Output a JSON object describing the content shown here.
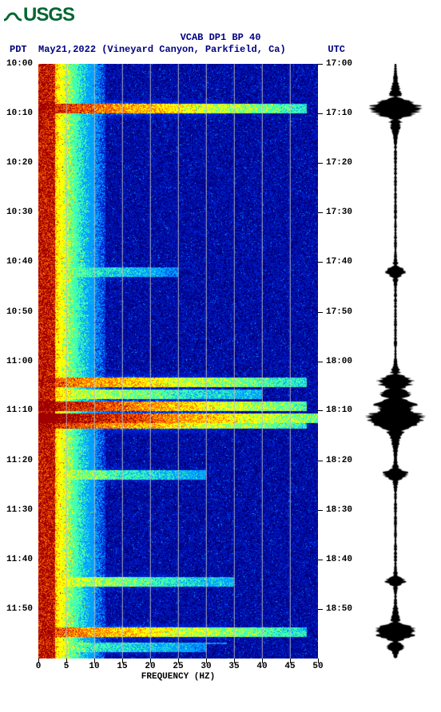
{
  "logo_text": "USGS",
  "title": "VCAB DP1 BP 40",
  "date_location": "May21,2022 (Vineyard Canyon, Parkfield, Ca)",
  "tz_left": "PDT",
  "tz_right": "UTC",
  "x_axis_title": "FREQUENCY (HZ)",
  "x_ticks": [
    0,
    5,
    10,
    15,
    20,
    25,
    30,
    35,
    40,
    45,
    50
  ],
  "time_left_labels": [
    "10:00",
    "10:10",
    "10:20",
    "10:30",
    "10:40",
    "10:50",
    "11:00",
    "11:10",
    "11:20",
    "11:30",
    "11:40",
    "11:50"
  ],
  "time_right_labels": [
    "17:00",
    "17:10",
    "17:20",
    "17:30",
    "17:40",
    "17:50",
    "18:00",
    "18:10",
    "18:20",
    "18:30",
    "18:40",
    "18:50"
  ],
  "time_fractions": [
    0.0,
    0.083,
    0.167,
    0.25,
    0.333,
    0.417,
    0.5,
    0.583,
    0.667,
    0.75,
    0.833,
    0.917
  ],
  "colors": {
    "low": "#000080",
    "mid_low": "#0020d0",
    "mid": "#00a0ff",
    "mid_high": "#40ffb0",
    "high": "#ffff00",
    "vhigh": "#ff6000",
    "max": "#a00000",
    "logo": "#006633",
    "text": "#000080"
  },
  "spectrogram": {
    "freq_range": [
      0,
      50
    ],
    "low_freq_band_end": 3,
    "gradient_end": 12,
    "events": [
      {
        "t": 0.075,
        "strength": 0.9,
        "extent": 48
      },
      {
        "t": 0.35,
        "strength": 0.6,
        "extent": 25
      },
      {
        "t": 0.535,
        "strength": 0.85,
        "extent": 48
      },
      {
        "t": 0.555,
        "strength": 0.7,
        "extent": 40
      },
      {
        "t": 0.575,
        "strength": 0.95,
        "extent": 48
      },
      {
        "t": 0.595,
        "strength": 1.0,
        "extent": 50
      },
      {
        "t": 0.605,
        "strength": 0.9,
        "extent": 48
      },
      {
        "t": 0.69,
        "strength": 0.65,
        "extent": 30
      },
      {
        "t": 0.87,
        "strength": 0.7,
        "extent": 35
      },
      {
        "t": 0.955,
        "strength": 0.85,
        "extent": 48
      },
      {
        "t": 0.98,
        "strength": 0.6,
        "extent": 30
      }
    ]
  },
  "waveform": {
    "baseline_noise": 0.05,
    "events": [
      {
        "t": 0.075,
        "amp": 0.9,
        "dur": 0.02
      },
      {
        "t": 0.35,
        "amp": 0.35,
        "dur": 0.012
      },
      {
        "t": 0.535,
        "amp": 0.6,
        "dur": 0.015
      },
      {
        "t": 0.555,
        "amp": 0.5,
        "dur": 0.012
      },
      {
        "t": 0.575,
        "amp": 0.7,
        "dur": 0.015
      },
      {
        "t": 0.595,
        "amp": 1.0,
        "dur": 0.022
      },
      {
        "t": 0.605,
        "amp": 0.8,
        "dur": 0.015
      },
      {
        "t": 0.69,
        "amp": 0.45,
        "dur": 0.012
      },
      {
        "t": 0.87,
        "amp": 0.35,
        "dur": 0.01
      },
      {
        "t": 0.955,
        "amp": 0.75,
        "dur": 0.018
      },
      {
        "t": 0.98,
        "amp": 0.3,
        "dur": 0.01
      }
    ]
  }
}
